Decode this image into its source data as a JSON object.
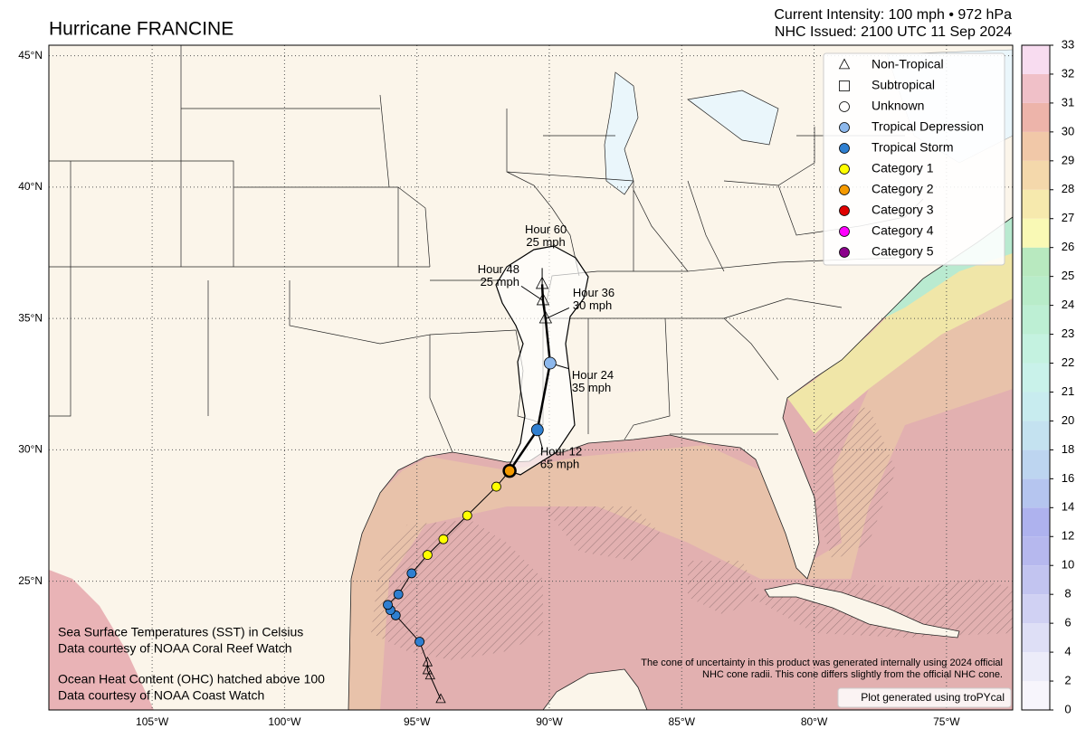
{
  "header": {
    "title": "Hurricane FRANCINE",
    "intensity": "Current Intensity: 100 mph • 972 hPa",
    "issued": "NHC Issued: 2100 UTC 11 Sep 2024"
  },
  "map": {
    "xlim": [
      -108.9,
      -72.5
    ],
    "ylim": [
      20.1,
      45.4
    ],
    "lon_ticks": [
      {
        "value": -105,
        "label": "105°W"
      },
      {
        "value": -100,
        "label": "100°W"
      },
      {
        "value": -95,
        "label": "95°W"
      },
      {
        "value": -90,
        "label": "90°W"
      },
      {
        "value": -85,
        "label": "85°W"
      },
      {
        "value": -80,
        "label": "80°W"
      },
      {
        "value": -75,
        "label": "75°W"
      }
    ],
    "lat_ticks": [
      {
        "value": 45,
        "label": "45°N"
      },
      {
        "value": 40,
        "label": "40°N"
      },
      {
        "value": 35,
        "label": "35°N"
      },
      {
        "value": 30,
        "label": "30°N"
      },
      {
        "value": 25,
        "label": "25°N"
      }
    ]
  },
  "legend": [
    {
      "name": "Non-Tropical",
      "shape": "triangle",
      "color": "none"
    },
    {
      "name": "Subtropical",
      "shape": "square",
      "color": "none"
    },
    {
      "name": "Unknown",
      "shape": "circle",
      "color": "none"
    },
    {
      "name": "Tropical Depression",
      "shape": "circle",
      "color": "#8db8ec"
    },
    {
      "name": "Tropical Storm",
      "shape": "circle",
      "color": "#2f7fd0"
    },
    {
      "name": "Category 1",
      "shape": "circle",
      "color": "#ffff00"
    },
    {
      "name": "Category 2",
      "shape": "circle",
      "color": "#f59a00"
    },
    {
      "name": "Category 3",
      "shape": "circle",
      "color": "#e00000"
    },
    {
      "name": "Category 4",
      "shape": "circle",
      "color": "#ff00ff"
    },
    {
      "name": "Category 5",
      "shape": "circle",
      "color": "#8b008b"
    }
  ],
  "past": {
    "lon": [
      -94.1,
      -94.5,
      -94.6,
      -94.6,
      -94.9,
      -95.8,
      -96.0,
      -96.1,
      -95.7,
      -95.2,
      -94.6,
      -94.0,
      -93.1,
      -92.0,
      -91.5
    ],
    "lat": [
      20.5,
      21.4,
      21.6,
      21.9,
      22.7,
      23.7,
      23.9,
      24.1,
      24.5,
      25.3,
      26.0,
      26.6,
      27.5,
      28.6,
      29.2
    ],
    "type": [
      "Non-Tropical",
      "Non-Tropical",
      "Non-Tropical",
      "Non-Tropical",
      "Tropical Storm",
      "Tropical Storm",
      "Tropical Storm",
      "Tropical Storm",
      "Tropical Storm",
      "Tropical Storm",
      "Category 1",
      "Category 1",
      "Category 1",
      "Category 1",
      "Category 2"
    ]
  },
  "forecast": {
    "lon": [
      -90.45,
      -89.97,
      -90.14,
      -90.24,
      -90.27
    ],
    "lat": [
      30.76,
      33.3,
      34.99,
      35.68,
      36.3
    ],
    "type": [
      "Tropical Storm",
      "Tropical Depression",
      "Non-Tropical",
      "Non-Tropical",
      "Non-Tropical"
    ],
    "hour": [
      "Hour 12",
      "Hour 24",
      "Hour 36",
      "Hour 48",
      "Hour 60"
    ],
    "wind": [
      "65 mph",
      "35 mph",
      "30 mph",
      "25 mph",
      "25 mph"
    ]
  },
  "colorbar": {
    "ticks": [
      0,
      2,
      4,
      6,
      8,
      10,
      12,
      14,
      16,
      18,
      20,
      21,
      22,
      23,
      24,
      25,
      26,
      27,
      28,
      29,
      30,
      31,
      32,
      33
    ],
    "colors": [
      "#f7f5fc",
      "#ececf9",
      "#dedff6",
      "#d0d1f3",
      "#c2c4f0",
      "#b6b8ee",
      "#aeb2ee",
      "#b5c5ef",
      "#bdd5f0",
      "#c4e2f0",
      "#c8ecef",
      "#c9f2ea",
      "#c4f2e0",
      "#bdefd4",
      "#b8ecc9",
      "#b8e9bf",
      "#f9f9b5",
      "#f6e9ad",
      "#f4d8ab",
      "#f1c8a8",
      "#edb4aa",
      "#f0c0c8",
      "#f8dcf0"
    ]
  },
  "notes": [
    "Sea Surface Temperatures (SST) in Celsius",
    "Data courtesy of NOAA Coral Reef Watch",
    "Ocean Heat Content (OHC) hatched above 100",
    "Data courtesy of NOAA Coast Watch"
  ],
  "disclaimer": [
    "The cone of uncertainty in this product was generated internally using 2024 official",
    "NHC cone radii. This cone differs slightly from the official NHC cone."
  ],
  "credit": "Plot generated using troPYcal"
}
